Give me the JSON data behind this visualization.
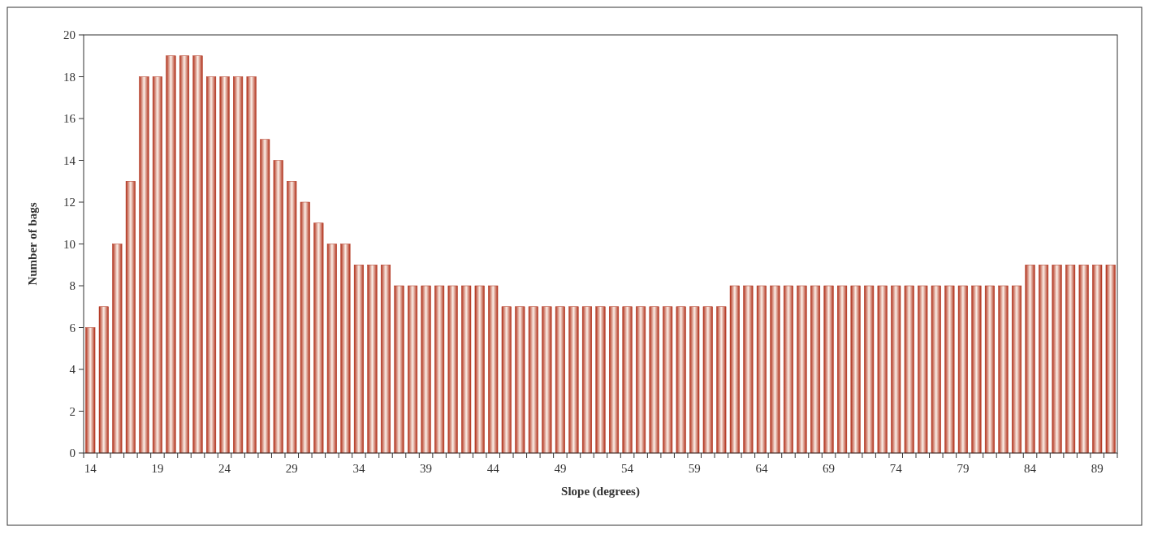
{
  "chart_data": {
    "type": "bar",
    "xlabel": "Slope (degrees)",
    "ylabel": "Number of bags",
    "categories": [
      "14",
      null,
      null,
      null,
      null,
      "19",
      null,
      null,
      null,
      null,
      "24",
      null,
      null,
      null,
      null,
      "29",
      null,
      null,
      null,
      null,
      "34",
      null,
      null,
      null,
      null,
      "39",
      null,
      null,
      null,
      null,
      "44",
      null,
      null,
      null,
      null,
      "49",
      null,
      null,
      null,
      null,
      "54",
      null,
      null,
      null,
      null,
      "59",
      null,
      null,
      null,
      null,
      "64",
      null,
      null,
      null,
      null,
      "69",
      null,
      null,
      null,
      null,
      "74",
      null,
      null,
      null,
      null,
      "79",
      null,
      null,
      null,
      null,
      "84",
      null,
      null,
      null,
      null,
      "89",
      null
    ],
    "values": [
      6,
      7,
      10,
      13,
      18,
      18,
      19,
      19,
      19,
      18,
      18,
      18,
      18,
      15,
      14,
      13,
      12,
      11,
      10,
      10,
      9,
      9,
      9,
      8,
      8,
      8,
      8,
      8,
      8,
      8,
      8,
      7,
      7,
      7,
      7,
      7,
      7,
      7,
      7,
      7,
      7,
      7,
      7,
      7,
      7,
      7,
      7,
      7,
      8,
      8,
      8,
      8,
      8,
      8,
      8,
      8,
      8,
      8,
      8,
      8,
      8,
      8,
      8,
      8,
      8,
      8,
      8,
      8,
      8,
      8,
      9,
      9,
      9,
      9,
      9,
      9,
      9
    ],
    "color": "#b0301a",
    "ylim": [
      0,
      20
    ],
    "yticks": [
      0,
      2,
      4,
      6,
      8,
      10,
      12,
      14,
      16,
      18,
      20
    ],
    "grid": false
  }
}
